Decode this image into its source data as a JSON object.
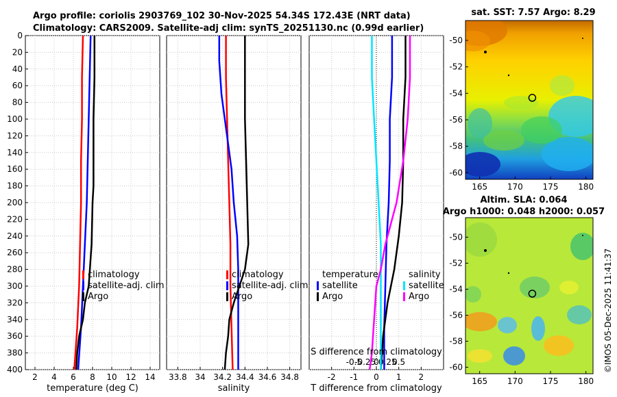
{
  "header": {
    "title_line1": "Argo profile: coriolis 2903769_102 30-Nov-2025 54.34S 172.43E (NRT data)",
    "title_line2": "Climatology: CARS2009. Satellite-adj clim: synTS_20251130.nc (0.99d earlier)"
  },
  "colors": {
    "climatology": "#ff0000",
    "satellite": "#0000ff",
    "argo": "#000000",
    "salinity_satellite": "#00e5ff",
    "salinity_argo": "#ff00ff"
  },
  "chart_data": [
    {
      "type": "line",
      "name": "temperature-profile",
      "xlabel": "temperature (deg C)",
      "ylabel": "",
      "xlim": [
        1,
        15
      ],
      "ylim": [
        400,
        0
      ],
      "xticks": [
        2,
        4,
        6,
        8,
        10,
        12,
        14
      ],
      "yticks": [
        0,
        20,
        40,
        60,
        80,
        100,
        120,
        140,
        160,
        180,
        200,
        220,
        240,
        260,
        280,
        300,
        320,
        340,
        360,
        380,
        400
      ],
      "legend": [
        "climatology",
        "satellite-adj. clim",
        "Argo"
      ],
      "series": [
        {
          "name": "climatology",
          "depth": [
            0,
            50,
            100,
            150,
            200,
            250,
            300,
            350,
            400
          ],
          "values": [
            7.0,
            6.9,
            6.9,
            6.8,
            6.8,
            6.7,
            6.6,
            6.4,
            6.1
          ]
        },
        {
          "name": "satellite-adj. clim",
          "depth": [
            0,
            50,
            100,
            150,
            200,
            250,
            300,
            350,
            400
          ],
          "values": [
            7.8,
            7.7,
            7.6,
            7.5,
            7.4,
            7.2,
            7.0,
            6.8,
            6.5
          ]
        },
        {
          "name": "Argo",
          "depth": [
            0,
            50,
            100,
            150,
            180,
            200,
            250,
            300,
            320,
            340,
            360,
            380,
            400
          ],
          "values": [
            8.2,
            8.2,
            8.1,
            8.1,
            8.1,
            8.0,
            7.9,
            7.6,
            7.2,
            7.0,
            6.6,
            6.4,
            6.3
          ]
        }
      ]
    },
    {
      "type": "line",
      "name": "salinity-profile",
      "xlabel": "salinity",
      "ylabel": "",
      "xlim": [
        33.7,
        34.9
      ],
      "ylim": [
        400,
        0
      ],
      "xticks": [
        33.8,
        34.0,
        34.2,
        34.4,
        34.6,
        34.8
      ],
      "xticklabels": [
        "33.8",
        "34",
        "34.2",
        "34.4",
        "34.6",
        "34.8"
      ],
      "legend": [
        "climatology",
        "satellite-adj. clim",
        "Argo"
      ],
      "series": [
        {
          "name": "climatology",
          "depth": [
            0,
            50,
            100,
            150,
            200,
            250,
            300,
            350,
            400
          ],
          "values": [
            34.23,
            34.23,
            34.24,
            34.25,
            34.26,
            34.27,
            34.27,
            34.28,
            34.29
          ]
        },
        {
          "name": "satellite-adj. clim",
          "depth": [
            0,
            30,
            70,
            120,
            160,
            200,
            240,
            280,
            320,
            360,
            400
          ],
          "values": [
            34.17,
            34.17,
            34.19,
            34.24,
            34.28,
            34.3,
            34.33,
            34.34,
            34.34,
            34.34,
            34.34
          ]
        },
        {
          "name": "Argo",
          "depth": [
            0,
            50,
            100,
            150,
            200,
            250,
            280,
            300,
            320,
            340,
            360,
            380,
            400
          ],
          "values": [
            34.4,
            34.4,
            34.4,
            34.41,
            34.42,
            34.43,
            34.4,
            34.35,
            34.3,
            34.26,
            34.25,
            34.23,
            34.22
          ]
        }
      ]
    },
    {
      "type": "line",
      "name": "difference-profile",
      "xlabel": "T difference from climatology",
      "top_label": "S difference from climatology",
      "xlim": [
        -3,
        3
      ],
      "ylim": [
        400,
        0
      ],
      "xticks": [
        -2,
        -1,
        0,
        1,
        2
      ],
      "top_ticks": [
        -0.5,
        -0.25,
        0,
        0.25,
        0.5
      ],
      "top_ticklabels": [
        "-0.5",
        "-0.25",
        "0",
        "0.25",
        "0.5"
      ],
      "legend_temperature": {
        "title": "temperature",
        "items": [
          "satellite",
          "Argo"
        ]
      },
      "legend_salinity": {
        "title": "salinity",
        "items": [
          "satellite",
          "Argo"
        ]
      },
      "series": [
        {
          "name": "temperature satellite",
          "depth": [
            0,
            50,
            100,
            150,
            200,
            250,
            300,
            350,
            400
          ],
          "values": [
            0.7,
            0.7,
            0.6,
            0.6,
            0.55,
            0.45,
            0.4,
            0.35,
            0.35
          ]
        },
        {
          "name": "temperature Argo",
          "depth": [
            0,
            50,
            100,
            150,
            200,
            240,
            280,
            320,
            360,
            400
          ],
          "values": [
            1.3,
            1.3,
            1.2,
            1.2,
            1.15,
            1.0,
            0.8,
            0.5,
            0.3,
            0.2
          ]
        },
        {
          "name": "salinity satellite",
          "depth": [
            0,
            50,
            100,
            150,
            200,
            250,
            300,
            350,
            400
          ],
          "values": [
            -0.1,
            -0.1,
            -0.05,
            0.0,
            0.05,
            0.1,
            0.1,
            0.1,
            0.1
          ]
        },
        {
          "name": "salinity Argo",
          "depth": [
            0,
            50,
            100,
            150,
            200,
            250,
            280,
            300,
            340,
            380,
            400
          ],
          "values": [
            0.75,
            0.75,
            0.7,
            0.6,
            0.45,
            0.2,
            0.1,
            0.0,
            -0.05,
            -0.1,
            -0.15
          ]
        }
      ]
    },
    {
      "type": "heatmap",
      "name": "sst-map",
      "title": "sat. SST: 7.57 Argo: 8.29",
      "xlim": [
        163,
        181
      ],
      "ylim": [
        -60.5,
        -48.5
      ],
      "xticks": [
        165,
        170,
        175,
        180
      ],
      "yticks": [
        -50,
        -52,
        -54,
        -56,
        -58,
        -60
      ],
      "marker": {
        "lon": 172.43,
        "lat": -54.34
      }
    },
    {
      "type": "heatmap",
      "name": "sla-map",
      "title_line1": "Altim. SLA: 0.064",
      "title_line2": "Argo h1000: 0.048 h2000: 0.057",
      "xlim": [
        163,
        181
      ],
      "ylim": [
        -60.5,
        -48.5
      ],
      "xticks": [
        165,
        170,
        175,
        180
      ],
      "yticks": [
        -50,
        -52,
        -54,
        -56,
        -58,
        -60
      ],
      "marker": {
        "lon": 172.43,
        "lat": -54.34
      }
    }
  ],
  "watermark": "©IMOS 05-Dec-2025 11:41:37"
}
